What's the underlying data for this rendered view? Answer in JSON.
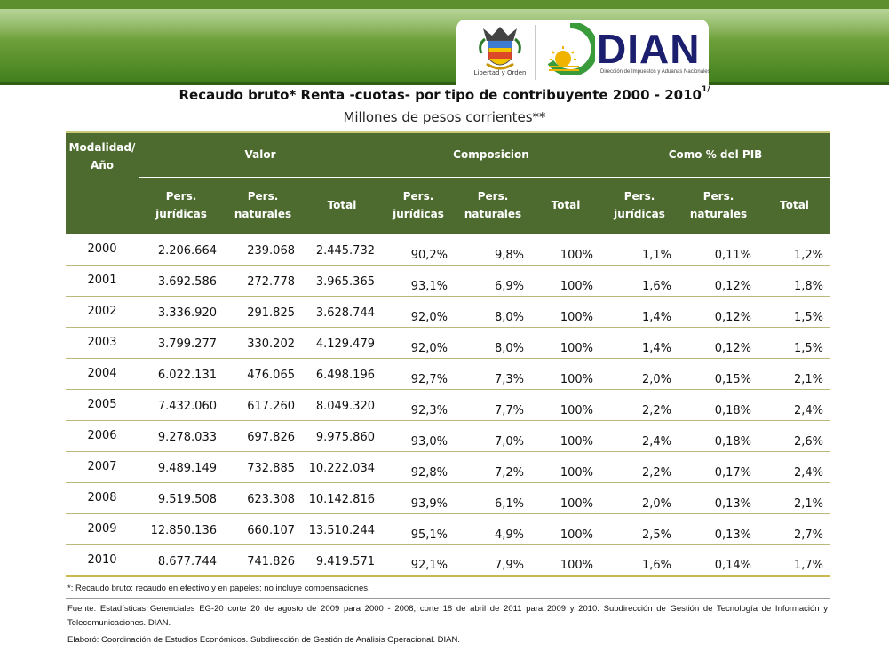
{
  "header": {
    "crest_caption": "Libertad y Orden",
    "logo_text": "DIAN",
    "logo_subtitle": "Dirección de Impuestos y Aduanas Nacionales",
    "colors": {
      "banner_green": "#6fa13b",
      "logo_blue": "#1b1f6e",
      "logo_green": "#3a9b3a",
      "logo_yellow": "#f0b300"
    }
  },
  "title": {
    "main": "Recaudo bruto* Renta -cuotas- por tipo de contribuyente 2000 - 2010",
    "superscript": "1/",
    "subtitle": "Millones de pesos corrientes**"
  },
  "table": {
    "header_color": "#4e6b2f",
    "row_header": "Modalidad/ Año",
    "groups": [
      "Valor",
      "Composicion",
      "Como % del PIB"
    ],
    "subheaders": [
      "Pers. jurídicas",
      "Pers. naturales",
      "Total",
      "Pers. jurídicas",
      "Pers. naturales",
      "Total",
      "Pers. jurídicas",
      "Pers. naturales",
      "Total"
    ],
    "rows": [
      {
        "year": "2000",
        "vj": "2.206.664",
        "vn": "239.068",
        "vt": "2.445.732",
        "cj": "90,2%",
        "cn": "9,8%",
        "ct": "100%",
        "pj": "1,1%",
        "pn": "0,11%",
        "pt": "1,2%"
      },
      {
        "year": "2001",
        "vj": "3.692.586",
        "vn": "272.778",
        "vt": "3.965.365",
        "cj": "93,1%",
        "cn": "6,9%",
        "ct": "100%",
        "pj": "1,6%",
        "pn": "0,12%",
        "pt": "1,8%"
      },
      {
        "year": "2002",
        "vj": "3.336.920",
        "vn": "291.825",
        "vt": "3.628.744",
        "cj": "92,0%",
        "cn": "8,0%",
        "ct": "100%",
        "pj": "1,4%",
        "pn": "0,12%",
        "pt": "1,5%"
      },
      {
        "year": "2003",
        "vj": "3.799.277",
        "vn": "330.202",
        "vt": "4.129.479",
        "cj": "92,0%",
        "cn": "8,0%",
        "ct": "100%",
        "pj": "1,4%",
        "pn": "0,12%",
        "pt": "1,5%"
      },
      {
        "year": "2004",
        "vj": "6.022.131",
        "vn": "476.065",
        "vt": "6.498.196",
        "cj": "92,7%",
        "cn": "7,3%",
        "ct": "100%",
        "pj": "2,0%",
        "pn": "0,15%",
        "pt": "2,1%"
      },
      {
        "year": "2005",
        "vj": "7.432.060",
        "vn": "617.260",
        "vt": "8.049.320",
        "cj": "92,3%",
        "cn": "7,7%",
        "ct": "100%",
        "pj": "2,2%",
        "pn": "0,18%",
        "pt": "2,4%"
      },
      {
        "year": "2006",
        "vj": "9.278.033",
        "vn": "697.826",
        "vt": "9.975.860",
        "cj": "93,0%",
        "cn": "7,0%",
        "ct": "100%",
        "pj": "2,4%",
        "pn": "0,18%",
        "pt": "2,6%"
      },
      {
        "year": "2007",
        "vj": "9.489.149",
        "vn": "732.885",
        "vt": "10.222.034",
        "cj": "92,8%",
        "cn": "7,2%",
        "ct": "100%",
        "pj": "2,2%",
        "pn": "0,17%",
        "pt": "2,4%"
      },
      {
        "year": "2008",
        "vj": "9.519.508",
        "vn": "623.308",
        "vt": "10.142.816",
        "cj": "93,9%",
        "cn": "6,1%",
        "ct": "100%",
        "pj": "2,0%",
        "pn": "0,13%",
        "pt": "2,1%"
      },
      {
        "year": "2009",
        "vj": "12.850.136",
        "vn": "660.107",
        "vt": "13.510.244",
        "cj": "95,1%",
        "cn": "4,9%",
        "ct": "100%",
        "pj": "2,5%",
        "pn": "0,13%",
        "pt": "2,7%"
      },
      {
        "year": "2010",
        "vj": "8.677.744",
        "vn": "741.826",
        "vt": "9.419.571",
        "cj": "92,1%",
        "cn": "7,9%",
        "ct": "100%",
        "pj": "1,6%",
        "pn": "0,14%",
        "pt": "1,7%"
      }
    ]
  },
  "notes": {
    "n1": "*: Recaudo bruto: recaudo en efectivo y en papeles; no incluye compensaciones.",
    "n2": "Fuente: Estadísticas Gerenciales EG-20 corte 20 de agosto de 2009 para 2000 - 2008; corte 18 de abril de 2011 para 2009 y 2010. Subdirección de Gestión de Tecnología de Información y Telecomunicaciones. DIAN.",
    "n3": "Elaboró: Coordinación de Estudios Económicos. Subdirección de Gestión de Análisis Operacional. DIAN."
  }
}
